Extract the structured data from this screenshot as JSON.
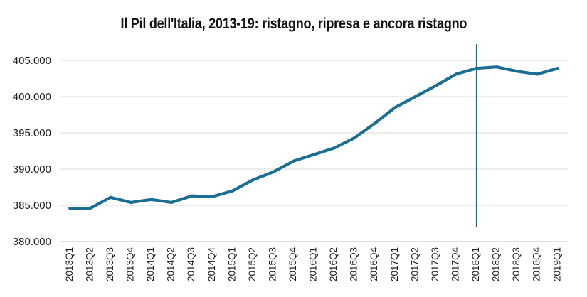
{
  "chart_data": {
    "type": "line",
    "title": "Il Pil dell'Italia, 2013-19: ristagno, ripresa e ancora ristagno",
    "xlabel": "",
    "ylabel": "",
    "ylim": [
      380000,
      405000
    ],
    "y_ticks": [
      380000,
      385000,
      390000,
      395000,
      400000,
      405000
    ],
    "y_tick_labels": [
      "380.000",
      "385.000",
      "390.000",
      "395.000",
      "400.000",
      "405.000"
    ],
    "grid": true,
    "legend": "none",
    "categories": [
      "2013Q1",
      "2013Q2",
      "2013Q3",
      "2013Q4",
      "2014Q1",
      "2014Q2",
      "2014Q3",
      "2014Q4",
      "2015Q1",
      "2015Q2",
      "2015Q3",
      "2015Q4",
      "2016Q1",
      "2016Q2",
      "2016Q3",
      "2016Q4",
      "2017Q1",
      "2017Q2",
      "2017Q3",
      "2017Q4",
      "2018Q1",
      "2018Q2",
      "2018Q3",
      "2018Q4",
      "2019Q1"
    ],
    "series": [
      {
        "name": "Pil",
        "color": "#1b6f95",
        "values": [
          384600,
          384600,
          386100,
          385400,
          385800,
          385400,
          386300,
          386200,
          387000,
          388500,
          389600,
          391100,
          392000,
          392900,
          394300,
          396300,
          398500,
          400000,
          401500,
          403100,
          403900,
          404100,
          403500,
          403100,
          403900
        ]
      }
    ],
    "reference_line": {
      "category": "2018Q1",
      "color": "#1b6f95"
    }
  }
}
